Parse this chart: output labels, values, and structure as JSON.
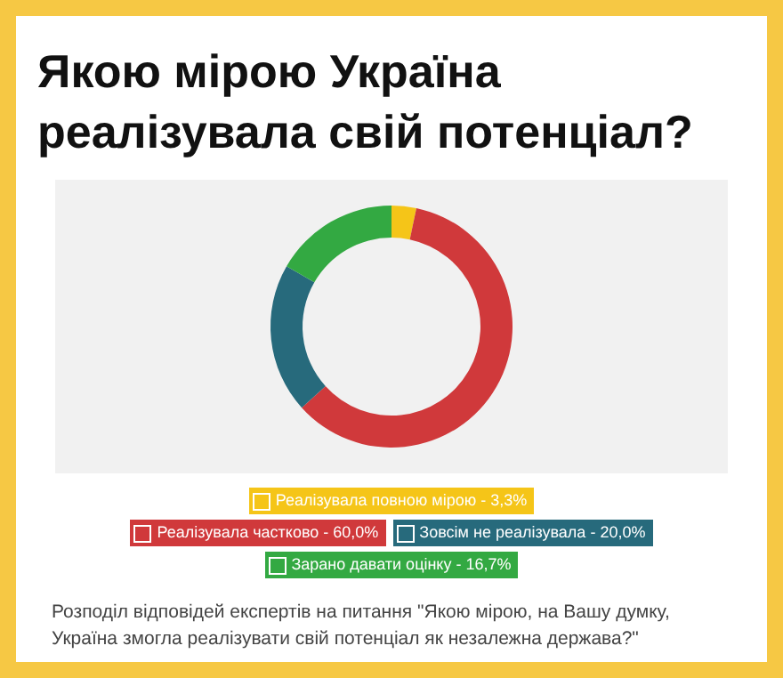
{
  "chart_data": {
    "type": "donut",
    "title": "Якою мірою Україна реалізувала свій потенціал?",
    "categories": [
      "Реалізувала повною мірою - 3,3%",
      "Реалізувала частково - 60,0%",
      "Зовсім не реалізувала - 20,0%",
      "Зарано давати оцінку - 16,7%"
    ],
    "values": [
      3.3,
      60.0,
      20.0,
      16.7
    ],
    "colors": [
      "#f5c518",
      "#d0393b",
      "#276a7c",
      "#33a942"
    ],
    "legend": "bottom",
    "annotations": [
      "Розподіл відповідей експертів на питання \"Якою мірою, на Вашу думку, Україна змогла реалізувати свій потенціал як незалежна держава?\""
    ]
  }
}
